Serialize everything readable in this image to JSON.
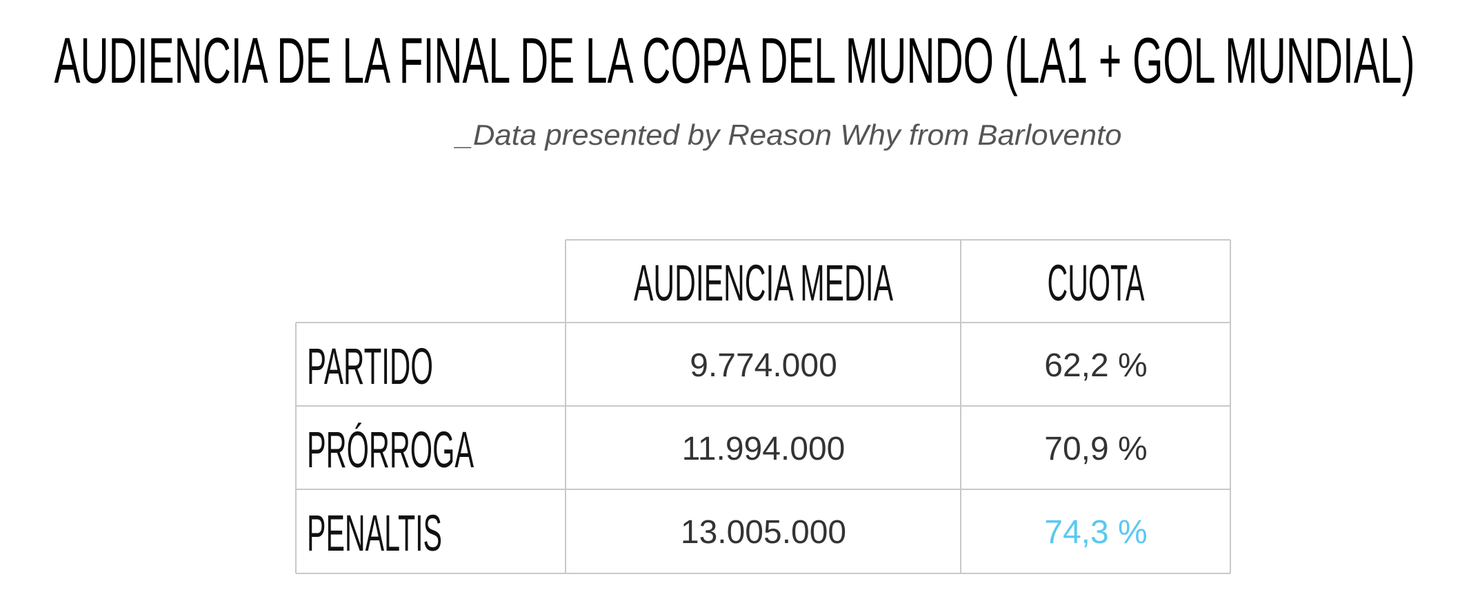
{
  "header": {
    "title": "AUDIENCIA DE LA FINAL DE LA COPA DEL MUNDO (LA1 + GOL MUNDIAL)",
    "subtitle": "_Data presented by Reason Why from Barlovento"
  },
  "table": {
    "columns": [
      "AUDIENCIA MEDIA",
      "CUOTA"
    ],
    "rows": [
      [
        "PARTIDO",
        "9.774.000",
        "62,2 %"
      ],
      [
        "PRÓRROGA",
        "11.994.000",
        "70,9 %"
      ],
      [
        "PENALTIS",
        "13.005.000",
        "74,3 %"
      ]
    ]
  }
}
